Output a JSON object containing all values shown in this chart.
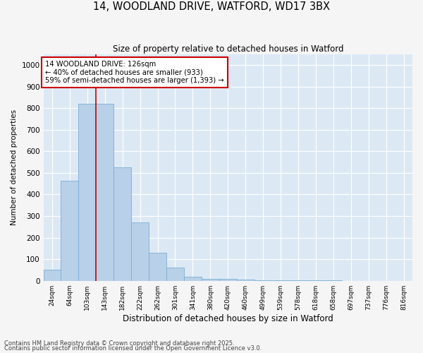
{
  "title1": "14, WOODLAND DRIVE, WATFORD, WD17 3BX",
  "title2": "Size of property relative to detached houses in Watford",
  "xlabel": "Distribution of detached houses by size in Watford",
  "ylabel": "Number of detached properties",
  "bar_color": "#b8d0e8",
  "bar_edge_color": "#7bafd4",
  "background_color": "#dce9f5",
  "grid_color": "#ffffff",
  "categories": [
    "24sqm",
    "64sqm",
    "103sqm",
    "143sqm",
    "182sqm",
    "222sqm",
    "262sqm",
    "301sqm",
    "341sqm",
    "380sqm",
    "420sqm",
    "460sqm",
    "499sqm",
    "539sqm",
    "578sqm",
    "618sqm",
    "658sqm",
    "697sqm",
    "737sqm",
    "776sqm",
    "816sqm"
  ],
  "values": [
    50,
    465,
    820,
    820,
    525,
    270,
    130,
    60,
    20,
    10,
    10,
    5,
    2,
    2,
    1,
    1,
    1,
    0,
    0,
    0,
    0
  ],
  "ylim": [
    0,
    1050
  ],
  "yticks": [
    0,
    100,
    200,
    300,
    400,
    500,
    600,
    700,
    800,
    900,
    1000
  ],
  "property_line_x": 2.5,
  "annotation_line1": "14 WOODLAND DRIVE: 126sqm",
  "annotation_line2": "← 40% of detached houses are smaller (933)",
  "annotation_line3": "59% of semi-detached houses are larger (1,393) →",
  "annotation_box_color": "#ffffff",
  "annotation_box_edge_color": "#cc0000",
  "red_line_color": "#cc0000",
  "footer1": "Contains HM Land Registry data © Crown copyright and database right 2025.",
  "footer2": "Contains public sector information licensed under the Open Government Licence v3.0.",
  "fig_facecolor": "#f5f5f5"
}
